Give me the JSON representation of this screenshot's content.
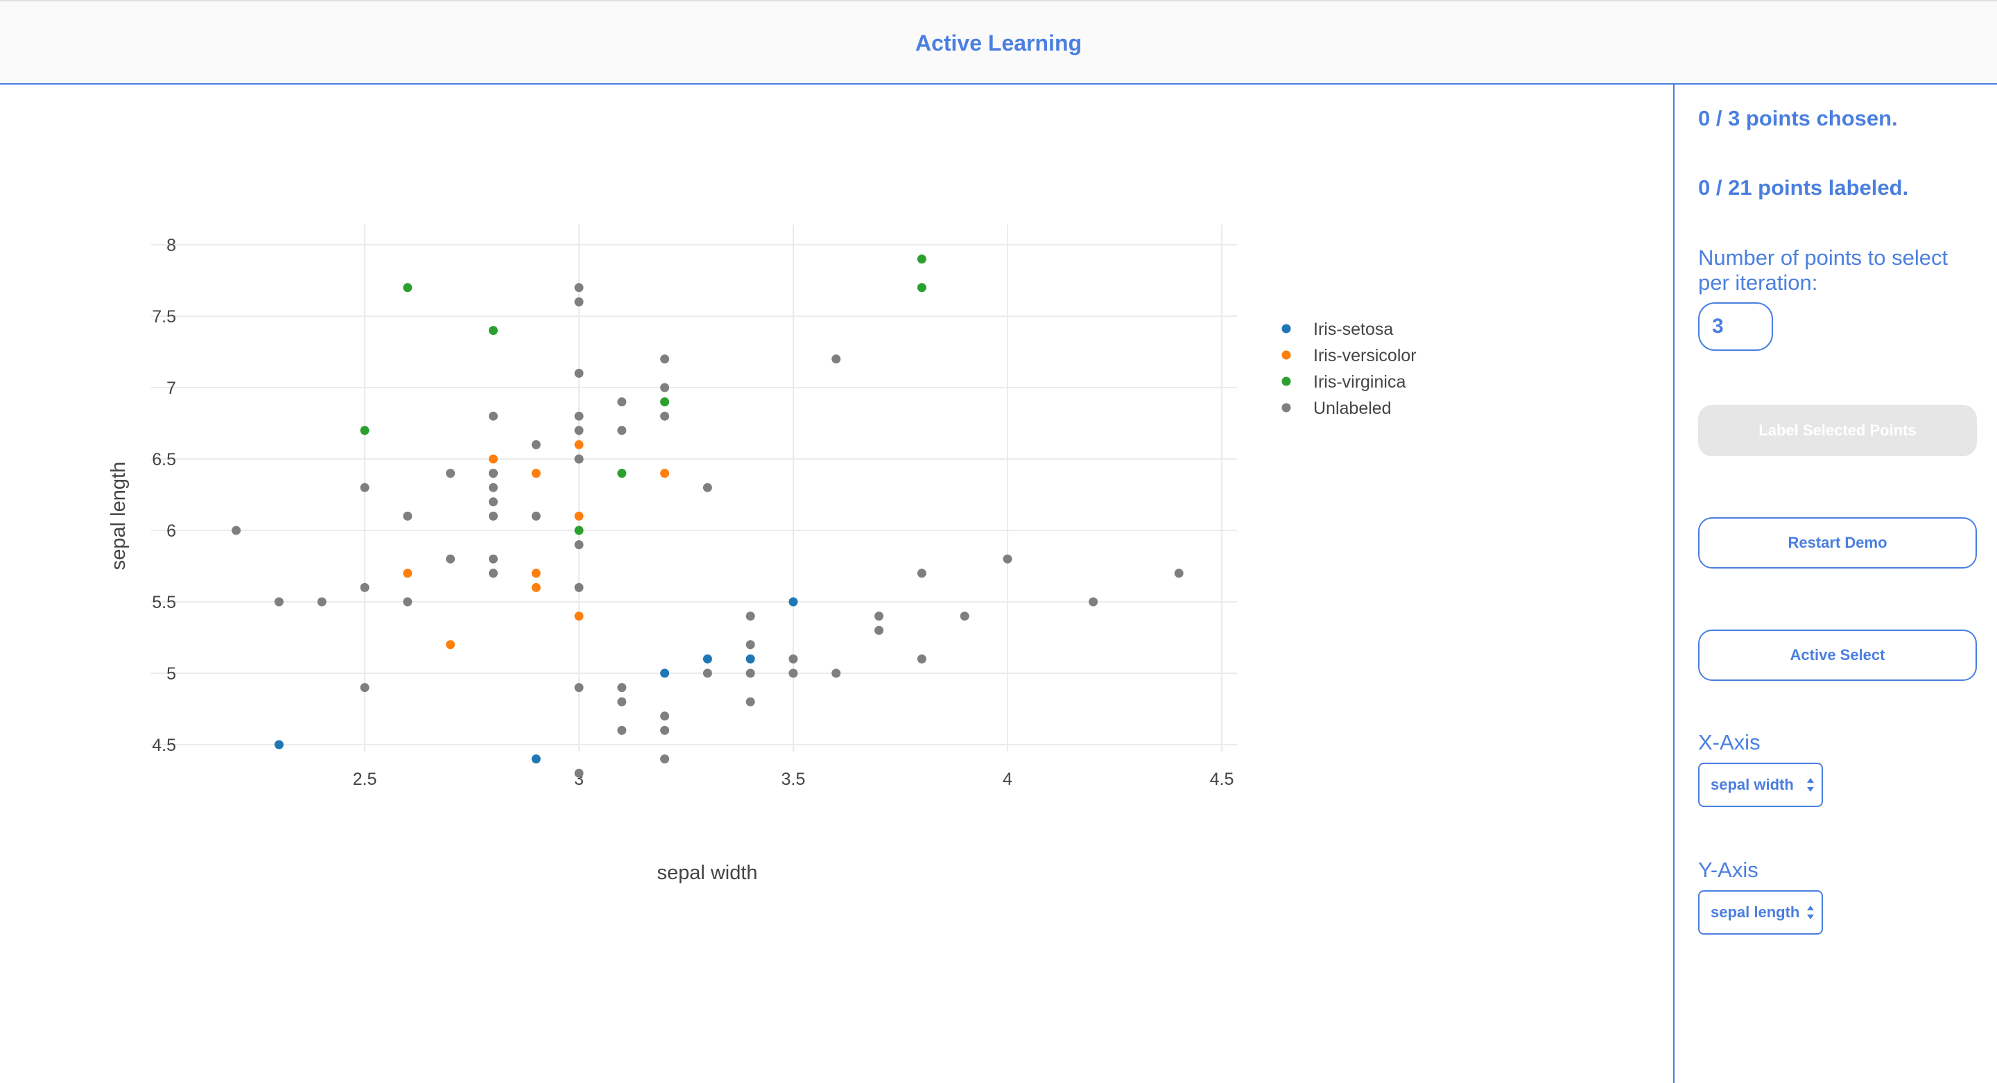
{
  "header": {
    "title": "Active Learning"
  },
  "sidebar": {
    "points_chosen": "0 / 3 points chosen.",
    "points_labeled": "0 / 21 points labeled.",
    "num_points_label": "Number of points to select per iteration:",
    "num_points_value": "3",
    "label_selected_button": "Label Selected Points",
    "restart_demo_button": "Restart Demo",
    "active_select_button": "Active Select",
    "x_axis_heading": "X-Axis",
    "x_axis_value": "sepal width",
    "y_axis_heading": "Y-Axis",
    "y_axis_value": "sepal length"
  },
  "colors": {
    "accent": "#4a7fe0",
    "disabled_button": "#e6e6e6"
  },
  "chart_data": {
    "type": "scatter",
    "xlabel": "sepal width",
    "ylabel": "sepal length",
    "xlim": [
      2.0,
      4.5
    ],
    "ylim": [
      4.2,
      8.15
    ],
    "x_ticks": [
      2.5,
      3,
      3.5,
      4,
      4.5
    ],
    "x_tick_labels": [
      "2.5",
      "3",
      "3.5",
      "4",
      "4.5"
    ],
    "y_ticks": [
      4.5,
      5,
      5.5,
      6,
      6.5,
      7,
      7.5,
      8
    ],
    "y_tick_labels": [
      "4.5",
      "5",
      "5.5",
      "6",
      "6.5",
      "7",
      "7.5",
      "8"
    ],
    "grid": true,
    "legend_position": "top-right",
    "series": [
      {
        "name": "Iris-setosa",
        "color": "#1f77b4",
        "x": [
          2.3,
          2.9,
          3.2,
          3.3,
          3.4,
          3.5
        ],
        "y": [
          4.5,
          4.4,
          5.0,
          5.1,
          5.1,
          5.5
        ]
      },
      {
        "name": "Iris-versicolor",
        "color": "#ff7f0e",
        "x": [
          2.8,
          2.9,
          3.0,
          3.2,
          3.0,
          2.6,
          2.9,
          2.9,
          3.0,
          2.7
        ],
        "y": [
          6.5,
          6.4,
          6.6,
          6.4,
          6.1,
          5.7,
          5.7,
          5.6,
          5.4,
          5.2
        ]
      },
      {
        "name": "Iris-virginica",
        "color": "#2ca02c",
        "x": [
          3.8,
          3.8,
          2.6,
          2.8,
          2.5,
          3.2,
          3.1,
          3.0
        ],
        "y": [
          7.9,
          7.7,
          7.7,
          7.4,
          6.7,
          6.9,
          6.4,
          6.0
        ]
      },
      {
        "name": "Unlabeled",
        "color": "#7f7f7f",
        "x": [
          2.2,
          2.3,
          2.4,
          2.5,
          2.5,
          2.5,
          2.6,
          2.6,
          2.7,
          2.7,
          2.8,
          2.8,
          2.8,
          2.8,
          2.8,
          2.8,
          2.8,
          2.8,
          2.9,
          2.9,
          3.0,
          3.0,
          3.0,
          3.0,
          3.0,
          3.0,
          3.0,
          3.0,
          3.0,
          3.0,
          3.0,
          3.1,
          3.1,
          3.1,
          3.1,
          3.1,
          3.2,
          3.2,
          3.2,
          3.2,
          3.2,
          3.2,
          3.3,
          3.3,
          3.4,
          3.4,
          3.4,
          3.4,
          3.5,
          3.5,
          3.6,
          3.6,
          3.7,
          3.7,
          3.8,
          3.8,
          3.9,
          4.0,
          4.2,
          4.4
        ],
        "y": [
          6.0,
          5.5,
          5.5,
          6.3,
          5.6,
          4.9,
          6.1,
          5.5,
          6.4,
          5.8,
          6.8,
          6.4,
          6.3,
          6.2,
          6.1,
          5.8,
          5.7,
          6.4,
          6.6,
          6.1,
          7.7,
          7.6,
          7.1,
          6.8,
          6.7,
          6.5,
          5.9,
          5.6,
          4.9,
          4.3,
          6.5,
          6.9,
          6.7,
          4.9,
          4.8,
          4.6,
          7.2,
          7.0,
          6.8,
          4.7,
          4.6,
          4.4,
          6.3,
          5.0,
          5.4,
          5.2,
          5.0,
          4.8,
          5.1,
          5.0,
          7.2,
          5.0,
          5.4,
          5.3,
          5.7,
          5.1,
          5.4,
          5.8,
          5.5,
          5.7
        ]
      }
    ]
  }
}
